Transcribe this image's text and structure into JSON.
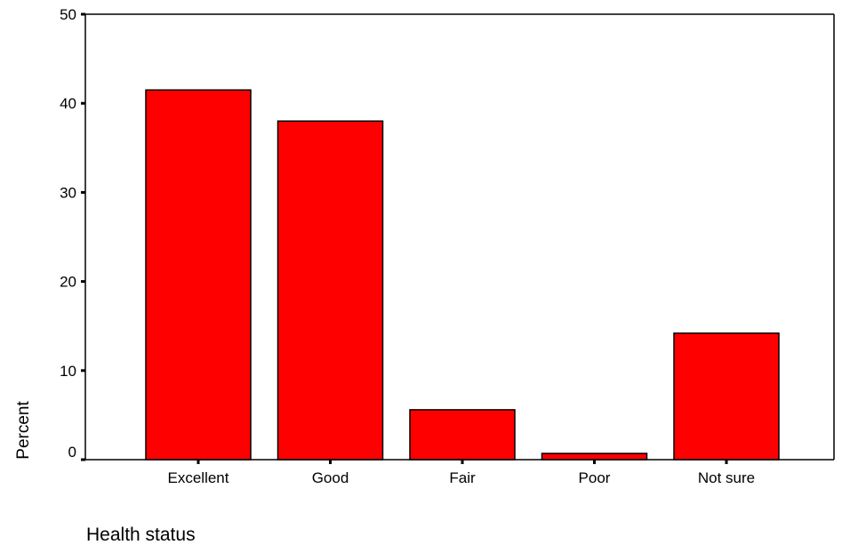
{
  "chart_data": {
    "type": "bar",
    "title": "",
    "xlabel": "Health status",
    "ylabel": "Percent",
    "categories": [
      "Excellent",
      "Good",
      "Fair",
      "Poor",
      "Not sure"
    ],
    "values": [
      41.5,
      38.0,
      5.6,
      0.7,
      14.2
    ],
    "ylim": [
      0,
      50
    ],
    "yticks": [
      "0",
      "10",
      "20",
      "30",
      "40",
      "50"
    ],
    "grid": false,
    "legend": "none",
    "bar_color": "#ff0000",
    "bar_edge_color": "#000000"
  }
}
